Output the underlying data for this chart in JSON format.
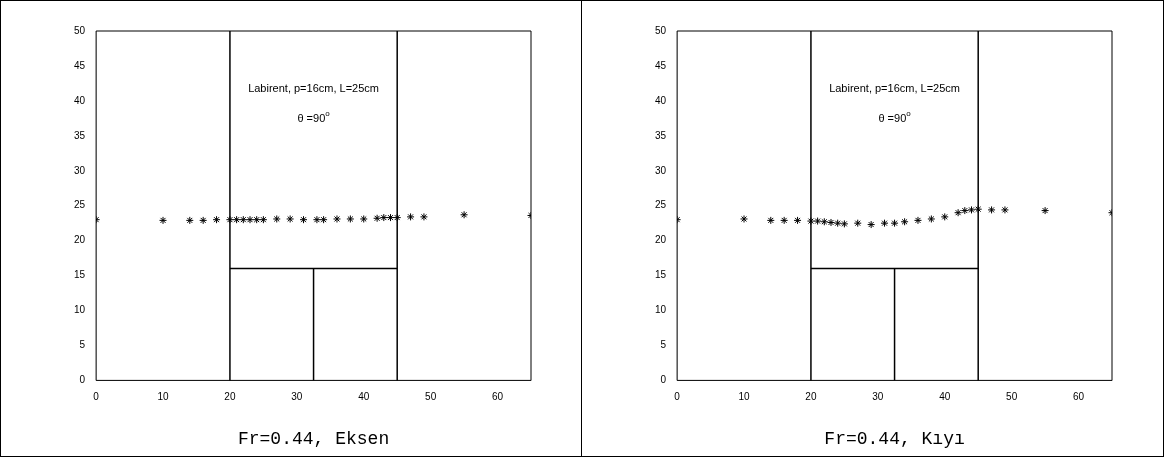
{
  "chart_data": [
    {
      "type": "scatter",
      "xlabel": "Fr=0.44, Eksen",
      "annotations": [
        "Labirent, p=16cm, L=25cm",
        "θ =90$^{o}$"
      ],
      "xlim": [
        0,
        65
      ],
      "xticks": [
        0,
        10,
        20,
        30,
        40,
        50,
        60
      ],
      "ylim": [
        0,
        50
      ],
      "yticks": [
        0,
        5,
        10,
        15,
        20,
        25,
        30,
        35,
        40,
        45,
        50
      ],
      "grid": false,
      "legend": false,
      "ref_lines": [
        {
          "axis": "x",
          "value": 20,
          "color": "#000000"
        },
        {
          "axis": "x",
          "value": 45,
          "color": "#000000"
        }
      ],
      "series": [
        {
          "type": "scatter",
          "marker": "cross",
          "color": "#000000",
          "x": [
            0,
            10,
            14,
            16,
            18,
            20,
            21,
            22,
            23,
            24,
            25,
            27,
            29,
            31,
            33,
            34,
            36,
            38,
            40,
            42,
            43,
            44,
            45,
            47,
            49,
            55,
            65
          ],
          "values": [
            23,
            22.9,
            22.9,
            22.9,
            23,
            23,
            23,
            23,
            23,
            23,
            23,
            23.1,
            23.1,
            23,
            23,
            23,
            23.1,
            23.1,
            23.1,
            23.2,
            23.3,
            23.3,
            23.3,
            23.4,
            23.4,
            23.7,
            23.6
          ]
        },
        {
          "type": "line",
          "color": "#000000",
          "x": [
            20,
            45
          ],
          "values": [
            16,
            16
          ]
        },
        {
          "type": "line",
          "color": "#000000",
          "x": [
            32.5,
            32.5
          ],
          "values": [
            0,
            16
          ]
        }
      ]
    },
    {
      "type": "scatter",
      "xlabel": "Fr=0.44, Kıyı",
      "annotations": [
        "Labirent, p=16cm, L=25cm",
        "θ =90$^{o}$"
      ],
      "xlim": [
        0,
        65
      ],
      "xticks": [
        0,
        10,
        20,
        30,
        40,
        50,
        60
      ],
      "ylim": [
        0,
        50
      ],
      "yticks": [
        0,
        5,
        10,
        15,
        20,
        25,
        30,
        35,
        40,
        45,
        50
      ],
      "grid": false,
      "legend": false,
      "ref_lines": [
        {
          "axis": "x",
          "value": 20,
          "color": "#000000"
        },
        {
          "axis": "x",
          "value": 45,
          "color": "#000000"
        }
      ],
      "series": [
        {
          "type": "scatter",
          "marker": "cross",
          "color": "#000000",
          "x": [
            0,
            10,
            14,
            16,
            18,
            20,
            21,
            22,
            23,
            24,
            25,
            27,
            29,
            31,
            32.5,
            34,
            36,
            38,
            40,
            42,
            43,
            44,
            45,
            47,
            49,
            55,
            65
          ],
          "values": [
            23,
            23.1,
            22.9,
            22.9,
            22.9,
            22.8,
            22.8,
            22.7,
            22.6,
            22.5,
            22.4,
            22.5,
            22.3,
            22.5,
            22.5,
            22.7,
            22.9,
            23.1,
            23.4,
            24,
            24.3,
            24.4,
            24.5,
            24.4,
            24.4,
            24.3,
            24
          ]
        },
        {
          "type": "line",
          "color": "#000000",
          "x": [
            20,
            45
          ],
          "values": [
            16,
            16
          ]
        },
        {
          "type": "line",
          "color": "#000000",
          "x": [
            32.5,
            32.5
          ],
          "values": [
            0,
            16
          ]
        }
      ]
    }
  ]
}
